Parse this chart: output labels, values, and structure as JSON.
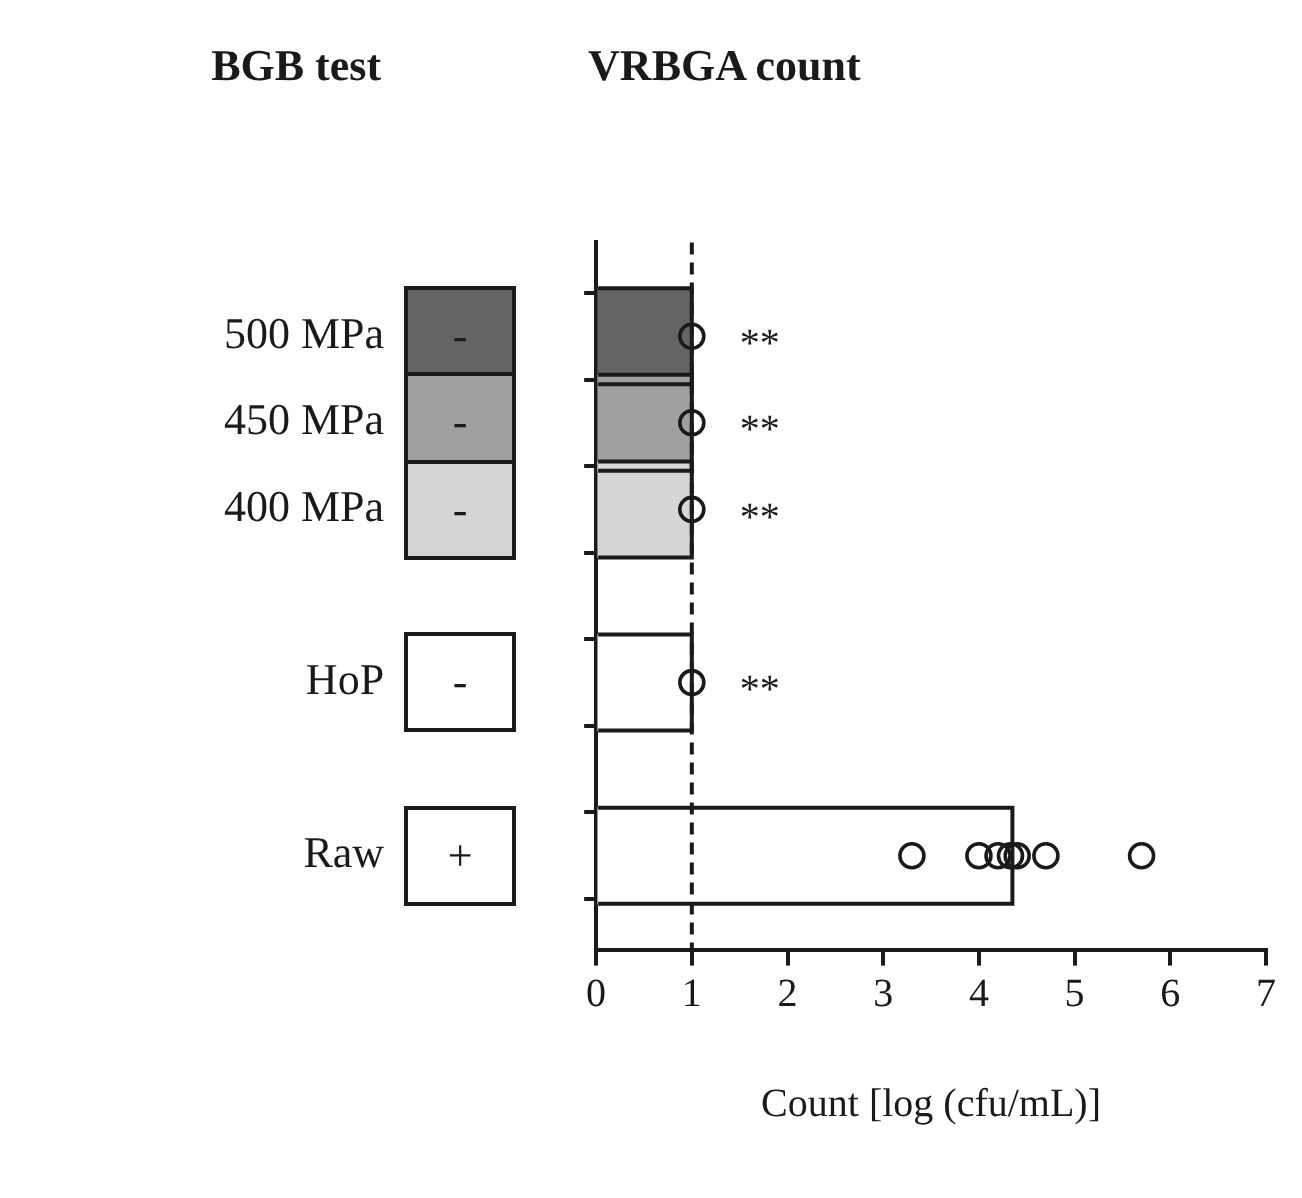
{
  "chart_data": {
    "type": "bar",
    "orientation": "horizontal",
    "title": "VRBGA count",
    "xlabel": "Count [log (cfu/mL)]",
    "categories": [
      "500 MPa",
      "450 MPa",
      "400 MPa",
      null,
      "HoP",
      null,
      "Raw"
    ],
    "series": [
      {
        "values": [
          1,
          1,
          1,
          null,
          1,
          null,
          4.35
        ],
        "value_labels": [
          "**",
          "**",
          "**",
          null,
          "**",
          null,
          null
        ],
        "colors": [
          "#646464",
          "#a0a0a2",
          "#d6d6d6",
          "#ffffff",
          "#ffffff",
          "#ffffff",
          "#ffffff"
        ]
      },
      {
        "type": "scatter",
        "color": "#1a1a1a",
        "x": [
          "500 MPa",
          "450 MPa",
          "400 MPa",
          "HoP",
          "Raw",
          "Raw",
          "Raw",
          "Raw",
          "Raw",
          "Raw",
          "Raw"
        ],
        "values": [
          1,
          1,
          1,
          1,
          3.3,
          4.0,
          4.2,
          4.33,
          4.4,
          4.7,
          5.7
        ]
      }
    ],
    "xlim": [
      0,
      7
    ],
    "xticks": [
      0,
      1,
      2,
      3,
      4,
      5,
      6,
      7
    ],
    "grid": false,
    "legend": false,
    "marker": "circle",
    "ref_lines": [
      {
        "axis": "x",
        "value": 1,
        "line_style": "dashed",
        "color": "#1a1a1a"
      }
    ],
    "annotations": [
      "BGB test",
      "-",
      "-",
      "-",
      "-",
      "+"
    ]
  }
}
